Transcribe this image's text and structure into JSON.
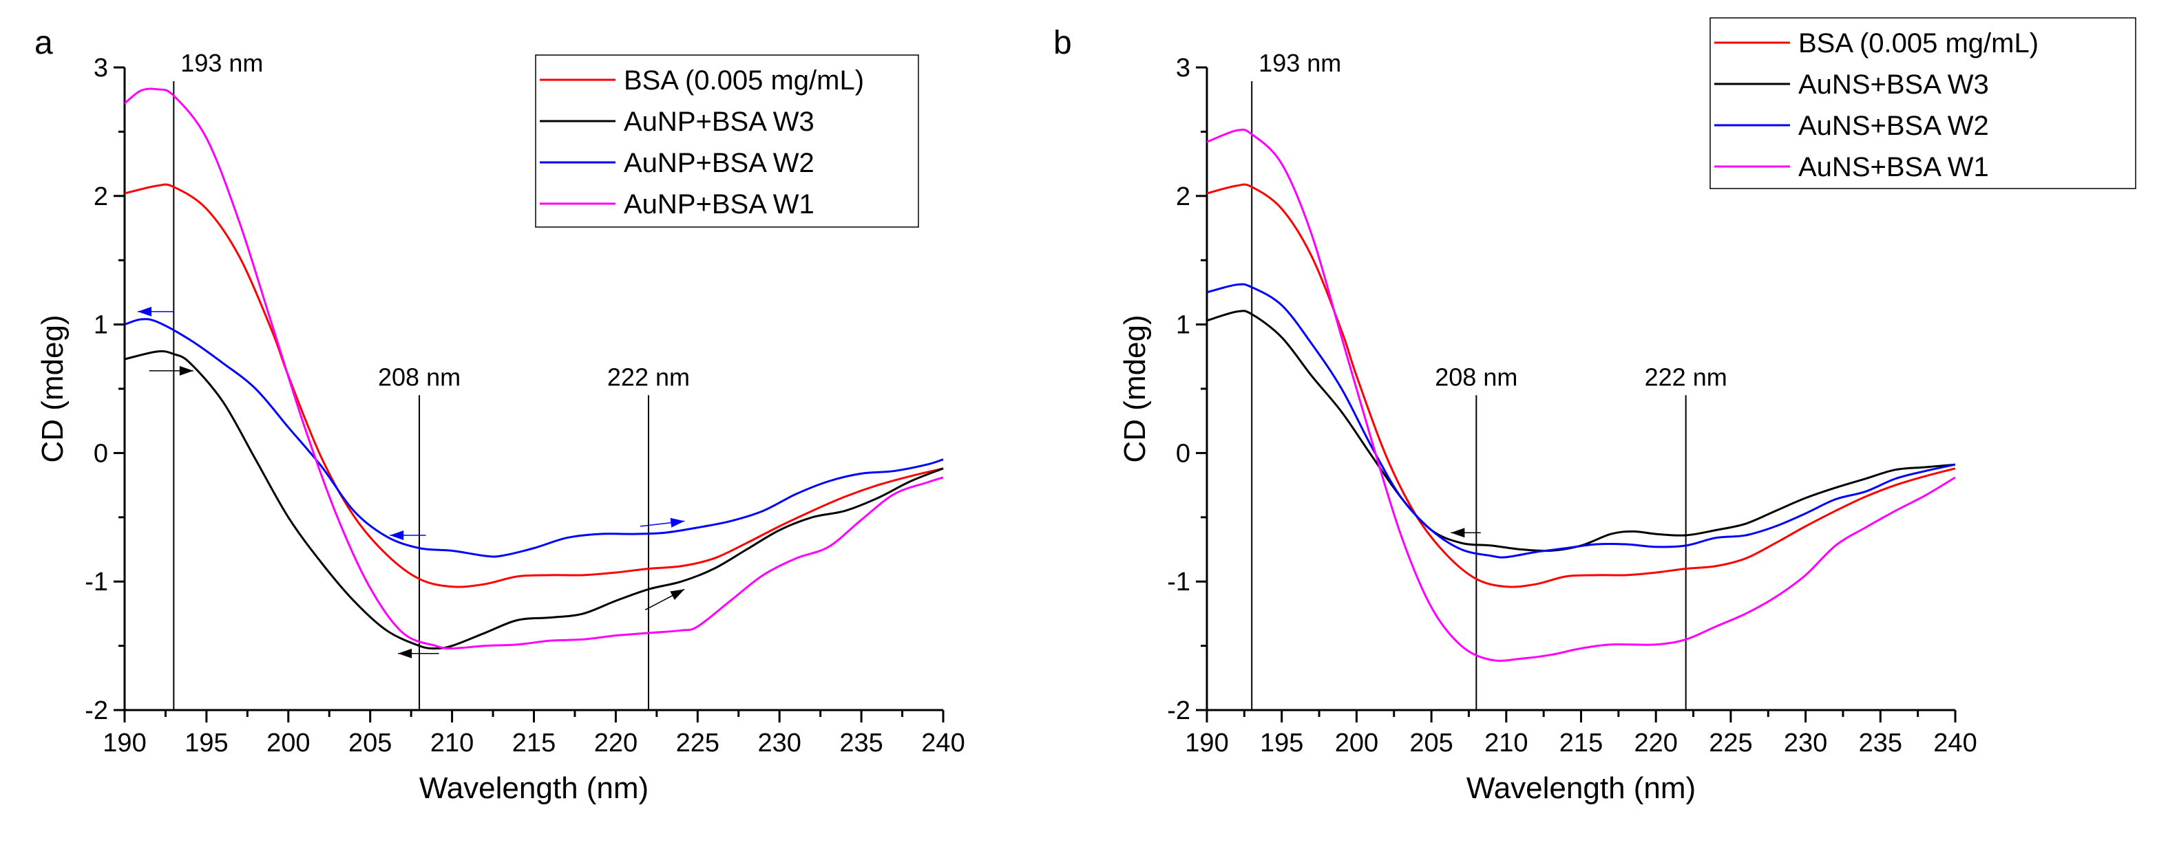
{
  "chart_data": [
    {
      "panel_label": "a",
      "type": "line",
      "xlabel": "Wavelength (nm)",
      "ylabel": "CD (mdeg)",
      "xlim": [
        190,
        240
      ],
      "ylim": [
        -2,
        3
      ],
      "xticks": [
        190,
        195,
        200,
        205,
        210,
        215,
        220,
        225,
        230,
        235,
        240
      ],
      "yticks": [
        -2,
        -1,
        0,
        1,
        2,
        3
      ],
      "grid": false,
      "legend_position": "top-right",
      "vlines": [
        {
          "x": 193,
          "label": "193 nm"
        },
        {
          "x": 208,
          "label": "208 nm"
        },
        {
          "x": 222,
          "label": "222 nm"
        }
      ],
      "series": [
        {
          "name": "BSA (0.005 mg/mL)",
          "color": "#ff0000",
          "x": [
            190,
            192,
            193,
            195,
            197,
            199,
            200,
            202,
            204,
            206,
            208,
            210,
            212,
            214,
            216,
            218,
            220,
            222,
            224,
            226,
            228,
            230,
            232,
            234,
            236,
            238,
            240
          ],
          "y": [
            2.02,
            2.08,
            2.07,
            1.9,
            1.53,
            0.95,
            0.6,
            -0.03,
            -0.49,
            -0.79,
            -0.98,
            -1.04,
            -1.02,
            -0.96,
            -0.95,
            -0.95,
            -0.93,
            -0.9,
            -0.88,
            -0.82,
            -0.7,
            -0.57,
            -0.45,
            -0.34,
            -0.25,
            -0.18,
            -0.12
          ]
        },
        {
          "name": "AuNP+BSA W3",
          "color": "#000000",
          "x": [
            190,
            192,
            193,
            194,
            196,
            198,
            200,
            202,
            204,
            206,
            208,
            209,
            210,
            212,
            214,
            216,
            218,
            220,
            222,
            224,
            226,
            228,
            230,
            232,
            234,
            236,
            238,
            240
          ],
          "y": [
            0.73,
            0.79,
            0.77,
            0.7,
            0.4,
            -0.05,
            -0.5,
            -0.85,
            -1.15,
            -1.38,
            -1.5,
            -1.52,
            -1.5,
            -1.4,
            -1.3,
            -1.28,
            -1.25,
            -1.15,
            -1.06,
            -1.0,
            -0.9,
            -0.75,
            -0.6,
            -0.5,
            -0.45,
            -0.35,
            -0.22,
            -0.12
          ]
        },
        {
          "name": "AuNP+BSA W2",
          "color": "#0000ff",
          "x": [
            190,
            191,
            192,
            194,
            196,
            198,
            200,
            202,
            204,
            206,
            208,
            210,
            212,
            213,
            215,
            217,
            219,
            221,
            223,
            225,
            227,
            229,
            231,
            233,
            235,
            237,
            239,
            240
          ],
          "y": [
            1.0,
            1.04,
            1.02,
            0.88,
            0.7,
            0.5,
            0.2,
            -0.1,
            -0.45,
            -0.65,
            -0.74,
            -0.76,
            -0.8,
            -0.8,
            -0.74,
            -0.66,
            -0.63,
            -0.63,
            -0.62,
            -0.58,
            -0.53,
            -0.45,
            -0.32,
            -0.22,
            -0.16,
            -0.14,
            -0.09,
            -0.05
          ]
        },
        {
          "name": "AuNP+BSA W1",
          "color": "#ff00ff",
          "x": [
            190,
            191,
            192,
            193,
            195,
            197,
            199,
            201,
            203,
            205,
            207,
            209,
            210,
            212,
            214,
            216,
            218,
            220,
            222,
            224,
            225,
            227,
            229,
            231,
            233,
            235,
            237,
            239,
            240
          ],
          "y": [
            2.72,
            2.82,
            2.83,
            2.78,
            2.45,
            1.8,
            1.0,
            0.2,
            -0.5,
            -1.05,
            -1.4,
            -1.5,
            -1.52,
            -1.5,
            -1.49,
            -1.46,
            -1.45,
            -1.42,
            -1.4,
            -1.38,
            -1.35,
            -1.15,
            -0.95,
            -0.82,
            -0.73,
            -0.52,
            -0.32,
            -0.23,
            -0.19
          ]
        }
      ],
      "arrows": [
        {
          "color": "#0000ff",
          "from": [
            193,
            1.1
          ],
          "to": [
            190.8,
            1.1
          ]
        },
        {
          "color": "#000000",
          "from": [
            191.5,
            0.64
          ],
          "to": [
            194.2,
            0.64
          ]
        },
        {
          "color": "#0000ff",
          "from": [
            208.4,
            -0.64
          ],
          "to": [
            206.2,
            -0.64
          ]
        },
        {
          "color": "#0000ff",
          "from": [
            221.5,
            -0.57
          ],
          "to": [
            224.2,
            -0.53
          ]
        },
        {
          "color": "#000000",
          "from": [
            221.8,
            -1.22
          ],
          "to": [
            224.2,
            -1.06
          ]
        },
        {
          "color": "#000000",
          "from": [
            209.2,
            -1.56
          ],
          "to": [
            206.7,
            -1.56
          ]
        }
      ]
    },
    {
      "panel_label": "b",
      "type": "line",
      "xlabel": "Wavelength (nm)",
      "ylabel": "CD (mdeg)",
      "xlim": [
        190,
        240
      ],
      "ylim": [
        -2,
        3
      ],
      "xticks": [
        190,
        195,
        200,
        205,
        210,
        215,
        220,
        225,
        230,
        235,
        240
      ],
      "yticks": [
        -2,
        -1,
        0,
        1,
        2,
        3
      ],
      "grid": false,
      "legend_position": "top-right",
      "vlines": [
        {
          "x": 193,
          "label": "193 nm"
        },
        {
          "x": 208,
          "label": "208 nm"
        },
        {
          "x": 222,
          "label": "222 nm"
        }
      ],
      "series": [
        {
          "name": "BSA (0.005 mg/mL)",
          "color": "#ff0000",
          "x": [
            190,
            192,
            193,
            195,
            197,
            199,
            200,
            202,
            204,
            206,
            208,
            210,
            212,
            214,
            216,
            218,
            220,
            222,
            224,
            226,
            228,
            230,
            232,
            234,
            236,
            238,
            240
          ],
          "y": [
            2.02,
            2.08,
            2.07,
            1.9,
            1.53,
            0.95,
            0.6,
            -0.03,
            -0.49,
            -0.79,
            -0.98,
            -1.04,
            -1.02,
            -0.96,
            -0.95,
            -0.95,
            -0.93,
            -0.9,
            -0.88,
            -0.82,
            -0.7,
            -0.57,
            -0.45,
            -0.34,
            -0.25,
            -0.18,
            -0.12
          ]
        },
        {
          "name": "AuNS+BSA W3",
          "color": "#000000",
          "x": [
            190,
            192,
            193,
            195,
            197,
            199,
            201,
            203,
            205,
            207,
            209,
            211,
            213,
            215,
            217,
            218.5,
            220,
            222,
            224,
            226,
            228,
            230,
            232,
            234,
            236,
            238,
            240
          ],
          "y": [
            1.03,
            1.1,
            1.08,
            0.9,
            0.6,
            0.32,
            -0.02,
            -0.35,
            -0.6,
            -0.7,
            -0.72,
            -0.75,
            -0.76,
            -0.72,
            -0.63,
            -0.61,
            -0.63,
            -0.64,
            -0.6,
            -0.55,
            -0.45,
            -0.35,
            -0.27,
            -0.2,
            -0.13,
            -0.11,
            -0.09
          ]
        },
        {
          "name": "AuNS+BSA W2",
          "color": "#0000ff",
          "x": [
            190,
            192,
            193,
            195,
            197,
            199,
            201,
            203,
            205,
            207,
            209,
            210,
            212,
            214,
            216,
            218,
            220,
            222,
            224,
            226,
            228,
            230,
            232,
            234,
            236,
            238,
            240
          ],
          "y": [
            1.25,
            1.31,
            1.29,
            1.15,
            0.85,
            0.5,
            0.05,
            -0.35,
            -0.6,
            -0.75,
            -0.8,
            -0.81,
            -0.77,
            -0.74,
            -0.71,
            -0.71,
            -0.73,
            -0.72,
            -0.66,
            -0.64,
            -0.57,
            -0.47,
            -0.36,
            -0.3,
            -0.2,
            -0.14,
            -0.09
          ]
        },
        {
          "name": "AuNS+BSA W1",
          "color": "#ff00ff",
          "x": [
            190,
            192,
            193,
            195,
            197,
            199,
            201,
            203,
            205,
            207,
            209,
            211,
            213,
            215,
            217,
            220,
            222,
            224,
            226,
            228,
            230,
            232,
            234,
            236,
            238,
            240
          ],
          "y": [
            2.42,
            2.51,
            2.48,
            2.25,
            1.7,
            0.9,
            0.1,
            -0.65,
            -1.2,
            -1.5,
            -1.61,
            -1.6,
            -1.57,
            -1.52,
            -1.49,
            -1.49,
            -1.45,
            -1.35,
            -1.25,
            -1.12,
            -0.95,
            -0.72,
            -0.58,
            -0.45,
            -0.33,
            -0.19
          ]
        }
      ],
      "arrows": [
        {
          "color": "#000000",
          "from": [
            208.3,
            -0.62
          ],
          "to": [
            206.3,
            -0.62
          ]
        }
      ]
    }
  ]
}
